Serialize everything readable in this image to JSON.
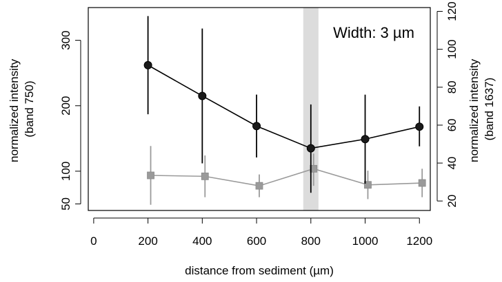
{
  "chart_data": {
    "type": "scatter",
    "title": "",
    "xlabel": "distance from sediment (µm)",
    "ylabel_left": [
      "normalized intensity",
      "(band 750)"
    ],
    "ylabel_right": [
      "normalized intensity",
      "(band 1637)"
    ],
    "xlim": [
      -20,
      1240
    ],
    "ylim_left": [
      40,
      350
    ],
    "ylim_right": [
      15,
      122
    ],
    "x_ticks": [
      0,
      200,
      400,
      600,
      800,
      1000,
      1200
    ],
    "y_ticks_left": [
      50,
      100,
      200,
      300
    ],
    "y_ticks_right": [
      20,
      40,
      60,
      80,
      100,
      120
    ],
    "grid": false,
    "annotation": "Width: 3 µm",
    "highlight_band": {
      "x_from": 772,
      "x_to": 828,
      "color": "#dcdcdc"
    },
    "series": [
      {
        "axis": "left",
        "marker": "circle",
        "color": "#1a1a1a",
        "line_color": "#000000",
        "points": [
          {
            "x": 200,
            "y": 262,
            "lo": 187,
            "hi": 337
          },
          {
            "x": 400,
            "y": 215,
            "lo": 112,
            "hi": 318
          },
          {
            "x": 600,
            "y": 169,
            "lo": 121,
            "hi": 217
          },
          {
            "x": 800,
            "y": 135,
            "lo": 67,
            "hi": 202
          },
          {
            "x": 1000,
            "y": 149,
            "lo": 81,
            "hi": 217
          },
          {
            "x": 1200,
            "y": 168,
            "lo": 138,
            "hi": 199
          }
        ]
      },
      {
        "axis": "right",
        "marker": "square",
        "color": "#9a9a9a",
        "line_color": "#9a9a9a",
        "points": [
          {
            "x": 210,
            "y": 33.5,
            "lo": 18,
            "hi": 49
          },
          {
            "x": 410,
            "y": 33,
            "lo": 22,
            "hi": 44
          },
          {
            "x": 610,
            "y": 28,
            "lo": 22,
            "hi": 34
          },
          {
            "x": 810,
            "y": 37,
            "lo": 28,
            "hi": 45
          },
          {
            "x": 1010,
            "y": 28.5,
            "lo": 21,
            "hi": 36
          },
          {
            "x": 1210,
            "y": 29.5,
            "lo": 22,
            "hi": 37
          }
        ]
      }
    ]
  }
}
